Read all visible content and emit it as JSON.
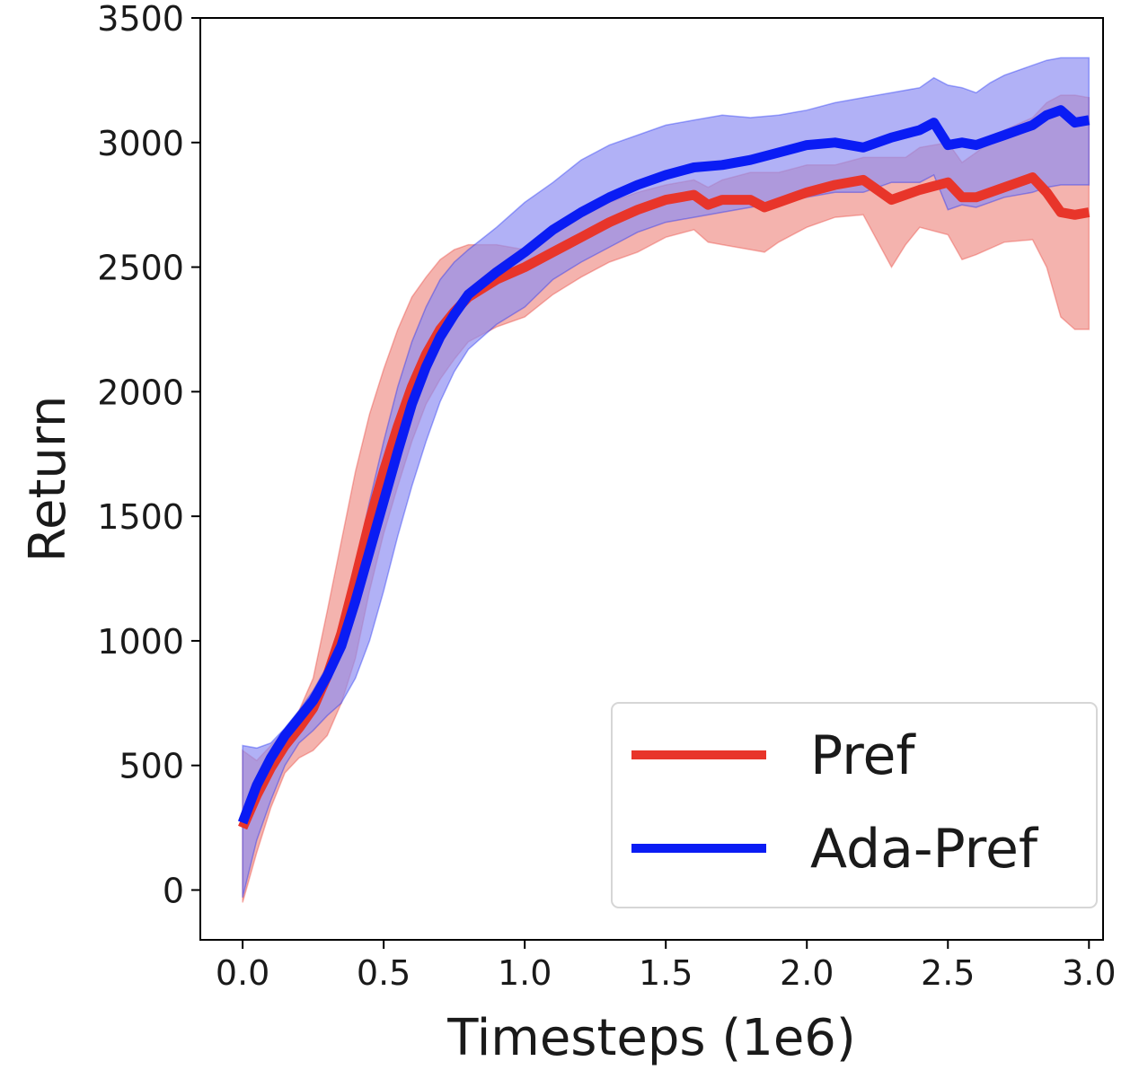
{
  "chart_data": {
    "type": "line",
    "title": "",
    "xlabel": "Timesteps (1e6)",
    "ylabel": "Return",
    "xlim": [
      -0.15,
      3.05
    ],
    "ylim": [
      -200,
      3500
    ],
    "xticks": [
      0.0,
      0.5,
      1.0,
      1.5,
      2.0,
      2.5,
      3.0
    ],
    "xtick_labels": [
      "0.0",
      "0.5",
      "1.0",
      "1.5",
      "2.0",
      "2.5",
      "3.0"
    ],
    "yticks": [
      0,
      500,
      1000,
      1500,
      2000,
      2500,
      3000,
      3500
    ],
    "ytick_labels": [
      "0",
      "500",
      "1000",
      "1500",
      "2000",
      "2500",
      "3000",
      "3500"
    ],
    "grid": false,
    "legend": "bottom-right",
    "series": [
      {
        "name": "Pref",
        "color": "#e8352a",
        "band_color": "#ef8f88",
        "x": [
          0.0,
          0.05,
          0.1,
          0.15,
          0.2,
          0.25,
          0.3,
          0.35,
          0.4,
          0.45,
          0.5,
          0.55,
          0.6,
          0.65,
          0.7,
          0.75,
          0.8,
          0.9,
          1.0,
          1.1,
          1.2,
          1.3,
          1.4,
          1.5,
          1.6,
          1.65,
          1.7,
          1.8,
          1.85,
          1.9,
          2.0,
          2.1,
          2.2,
          2.3,
          2.35,
          2.4,
          2.5,
          2.55,
          2.6,
          2.7,
          2.8,
          2.85,
          2.9,
          2.95,
          3.0
        ],
        "mean": [
          250,
          380,
          490,
          580,
          650,
          730,
          860,
          1030,
          1250,
          1480,
          1680,
          1860,
          2020,
          2150,
          2250,
          2320,
          2380,
          2450,
          2500,
          2560,
          2620,
          2680,
          2730,
          2770,
          2790,
          2750,
          2770,
          2770,
          2740,
          2760,
          2800,
          2830,
          2850,
          2770,
          2790,
          2810,
          2840,
          2780,
          2780,
          2820,
          2860,
          2800,
          2720,
          2710,
          2720
        ],
        "upper": [
          560,
          520,
          580,
          640,
          720,
          850,
          1120,
          1400,
          1680,
          1910,
          2090,
          2250,
          2380,
          2460,
          2530,
          2570,
          2590,
          2590,
          2570,
          2630,
          2700,
          2760,
          2800,
          2830,
          2850,
          2820,
          2850,
          2880,
          2880,
          2880,
          2910,
          2910,
          2940,
          2940,
          2940,
          2980,
          3000,
          2920,
          2960,
          3050,
          3100,
          3160,
          3190,
          3190,
          3180
        ],
        "lower": [
          -50,
          150,
          330,
          470,
          530,
          560,
          620,
          750,
          930,
          1200,
          1430,
          1620,
          1800,
          1950,
          2050,
          2130,
          2200,
          2260,
          2300,
          2390,
          2460,
          2520,
          2560,
          2620,
          2650,
          2600,
          2590,
          2570,
          2560,
          2600,
          2660,
          2700,
          2710,
          2500,
          2590,
          2660,
          2630,
          2530,
          2550,
          2600,
          2610,
          2500,
          2300,
          2250,
          2250
        ]
      },
      {
        "name": "Ada-Pref",
        "color": "#0a1cf4",
        "band_color": "#8c8cf2",
        "x": [
          0.0,
          0.05,
          0.1,
          0.15,
          0.2,
          0.25,
          0.3,
          0.35,
          0.4,
          0.45,
          0.5,
          0.55,
          0.6,
          0.65,
          0.7,
          0.75,
          0.8,
          0.9,
          1.0,
          1.1,
          1.2,
          1.3,
          1.4,
          1.5,
          1.6,
          1.7,
          1.8,
          1.9,
          2.0,
          2.1,
          2.2,
          2.3,
          2.4,
          2.45,
          2.5,
          2.55,
          2.6,
          2.65,
          2.7,
          2.8,
          2.85,
          2.9,
          2.95,
          3.0
        ],
        "mean": [
          270,
          420,
          530,
          620,
          690,
          760,
          860,
          980,
          1160,
          1360,
          1560,
          1760,
          1950,
          2100,
          2220,
          2310,
          2390,
          2480,
          2560,
          2650,
          2720,
          2780,
          2830,
          2870,
          2900,
          2910,
          2930,
          2960,
          2990,
          3000,
          2980,
          3020,
          3050,
          3080,
          2990,
          3000,
          2990,
          3010,
          3030,
          3070,
          3110,
          3130,
          3080,
          3090
        ],
        "upper": [
          580,
          570,
          590,
          650,
          720,
          800,
          900,
          1050,
          1300,
          1560,
          1800,
          2020,
          2200,
          2340,
          2450,
          2520,
          2570,
          2660,
          2760,
          2840,
          2930,
          2990,
          3030,
          3070,
          3090,
          3110,
          3100,
          3110,
          3130,
          3160,
          3180,
          3200,
          3220,
          3260,
          3230,
          3220,
          3200,
          3240,
          3270,
          3310,
          3330,
          3340,
          3340,
          3340
        ],
        "lower": [
          -30,
          200,
          360,
          500,
          590,
          640,
          700,
          750,
          850,
          1000,
          1200,
          1420,
          1620,
          1800,
          1960,
          2080,
          2170,
          2270,
          2340,
          2450,
          2520,
          2580,
          2640,
          2680,
          2700,
          2720,
          2740,
          2760,
          2780,
          2800,
          2800,
          2840,
          2840,
          2870,
          2730,
          2750,
          2740,
          2760,
          2780,
          2800,
          2820,
          2830,
          2830,
          2830
        ]
      }
    ]
  }
}
